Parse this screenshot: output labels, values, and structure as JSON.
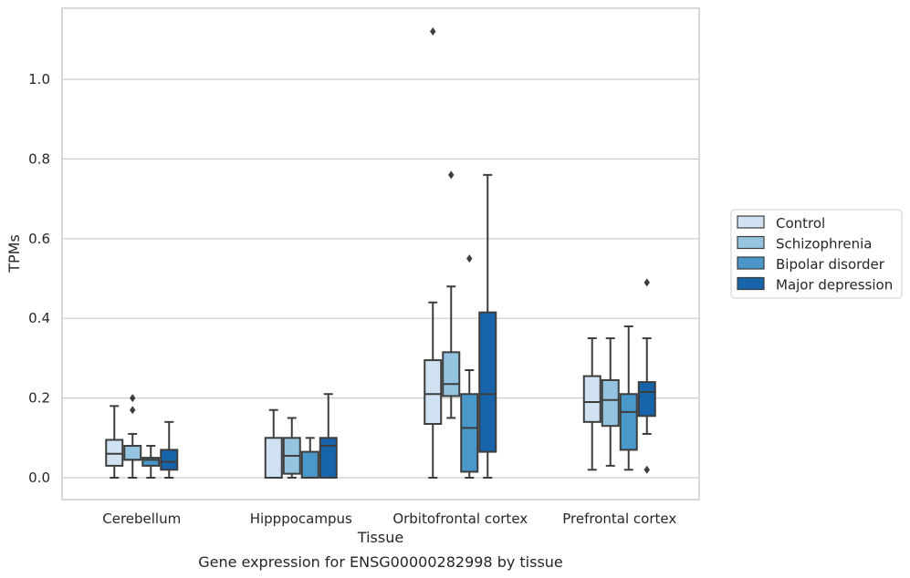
{
  "chart_data": {
    "type": "box",
    "title": "",
    "caption": "Gene expression for ENSG00000282998 by tissue",
    "xlabel": "Tissue",
    "ylabel": "TPMs",
    "ylim": [
      -0.055,
      1.18
    ],
    "yticks": [
      0.0,
      0.2,
      0.4,
      0.6,
      0.8,
      1.0
    ],
    "ytick_labels": [
      "0.0",
      "0.2",
      "0.4",
      "0.6",
      "0.8",
      "1.0"
    ],
    "grid": "horizontal",
    "legend_position": "right",
    "categories": [
      "Cerebellum",
      "Hipppocampus",
      "Orbitofrontal cortex",
      "Prefrontal cortex"
    ],
    "series": [
      {
        "name": "Control",
        "color": "#d0e1f2",
        "boxes": [
          {
            "whislo": 0.0,
            "q1": 0.03,
            "med": 0.06,
            "q3": 0.095,
            "whishi": 0.18,
            "fliers": []
          },
          {
            "whislo": 0.0,
            "q1": 0.0,
            "med": 0.0,
            "q3": 0.1,
            "whishi": 0.17,
            "fliers": []
          },
          {
            "whislo": 0.0,
            "q1": 0.135,
            "med": 0.21,
            "q3": 0.295,
            "whishi": 0.44,
            "fliers": [
              1.12
            ]
          },
          {
            "whislo": 0.02,
            "q1": 0.14,
            "med": 0.19,
            "q3": 0.255,
            "whishi": 0.35,
            "fliers": []
          }
        ]
      },
      {
        "name": "Schizophrenia",
        "color": "#94c4df",
        "boxes": [
          {
            "whislo": 0.0,
            "q1": 0.045,
            "med": 0.045,
            "q3": 0.08,
            "whishi": 0.11,
            "fliers": [
              0.2,
              0.17
            ]
          },
          {
            "whislo": 0.0,
            "q1": 0.01,
            "med": 0.055,
            "q3": 0.1,
            "whishi": 0.15,
            "fliers": []
          },
          {
            "whislo": 0.15,
            "q1": 0.205,
            "med": 0.235,
            "q3": 0.315,
            "whishi": 0.48,
            "fliers": [
              0.76
            ]
          },
          {
            "whislo": 0.03,
            "q1": 0.13,
            "med": 0.195,
            "q3": 0.245,
            "whishi": 0.35,
            "fliers": []
          }
        ]
      },
      {
        "name": "Bipolar disorder",
        "color": "#4a98c9",
        "boxes": [
          {
            "whislo": 0.0,
            "q1": 0.03,
            "med": 0.045,
            "q3": 0.05,
            "whishi": 0.08,
            "fliers": []
          },
          {
            "whislo": 0.0,
            "q1": 0.0,
            "med": 0.0,
            "q3": 0.065,
            "whishi": 0.1,
            "fliers": []
          },
          {
            "whislo": 0.0,
            "q1": 0.015,
            "med": 0.125,
            "q3": 0.21,
            "whishi": 0.27,
            "fliers": [
              0.55
            ]
          },
          {
            "whislo": 0.02,
            "q1": 0.07,
            "med": 0.165,
            "q3": 0.21,
            "whishi": 0.38,
            "fliers": []
          }
        ]
      },
      {
        "name": "Major depression",
        "color": "#1764ab",
        "boxes": [
          {
            "whislo": 0.0,
            "q1": 0.02,
            "med": 0.04,
            "q3": 0.07,
            "whishi": 0.14,
            "fliers": []
          },
          {
            "whislo": 0.0,
            "q1": 0.0,
            "med": 0.08,
            "q3": 0.1,
            "whishi": 0.21,
            "fliers": []
          },
          {
            "whislo": 0.0,
            "q1": 0.065,
            "med": 0.21,
            "q3": 0.415,
            "whishi": 0.76,
            "fliers": []
          },
          {
            "whislo": 0.11,
            "q1": 0.155,
            "med": 0.215,
            "q3": 0.24,
            "whishi": 0.35,
            "fliers": [
              0.49,
              0.02
            ]
          }
        ]
      }
    ]
  }
}
